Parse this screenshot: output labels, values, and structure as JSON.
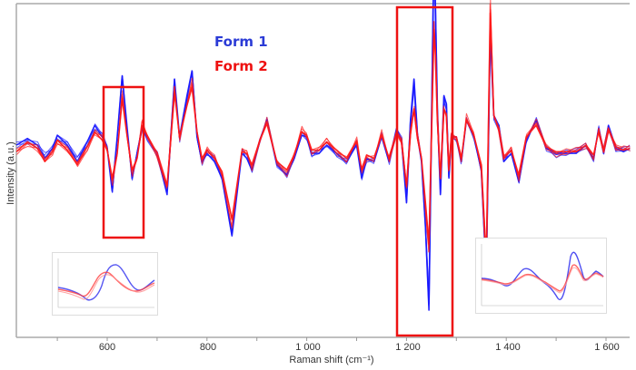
{
  "chart_data": {
    "type": "line",
    "title": "",
    "xlabel": "Raman shift (cm⁻¹)",
    "ylabel": "Intensity (a.u.)",
    "xlim": [
      418,
      1648
    ],
    "xticks": [
      600,
      800,
      1000,
      1200,
      1400,
      1600
    ],
    "xtick_labels": [
      "600",
      "800",
      "1 000",
      "1 200",
      "1 400",
      "1 600"
    ],
    "minor_xticks": [
      500,
      700,
      900,
      1100,
      1300,
      1500
    ],
    "grid": false,
    "legend": [
      {
        "label": "Form 1",
        "color": "#2b3bd6"
      },
      {
        "label": "Form 2",
        "color": "#ee1111"
      }
    ],
    "series": [
      {
        "name": "Form 1",
        "color": "#1a1aff",
        "x": [
          418,
          440,
          460,
          475,
          490,
          500,
          520,
          540,
          560,
          575,
          590,
          600,
          610,
          620,
          630,
          640,
          650,
          660,
          670,
          680,
          700,
          720,
          735,
          745,
          760,
          770,
          780,
          790,
          800,
          815,
          830,
          850,
          870,
          880,
          890,
          905,
          920,
          940,
          960,
          975,
          990,
          1000,
          1010,
          1025,
          1040,
          1060,
          1080,
          1100,
          1110,
          1120,
          1135,
          1150,
          1165,
          1180,
          1190,
          1200,
          1208,
          1215,
          1222,
          1230,
          1238,
          1245,
          1250,
          1255,
          1258,
          1262,
          1268,
          1275,
          1280,
          1285,
          1290,
          1300,
          1310,
          1320,
          1335,
          1350,
          1360,
          1368,
          1375,
          1385,
          1395,
          1410,
          1425,
          1440,
          1460,
          1480,
          1500,
          1520,
          1540,
          1560,
          1575,
          1585,
          1595,
          1605,
          1620,
          1635,
          1648
        ],
        "y": [
          0.0,
          0.04,
          0.0,
          -0.08,
          -0.02,
          0.06,
          0.0,
          -0.1,
          0.02,
          0.12,
          0.05,
          -0.02,
          -0.28,
          0.05,
          0.42,
          0.1,
          -0.2,
          -0.05,
          0.1,
          0.05,
          -0.05,
          -0.3,
          0.4,
          0.05,
          0.3,
          0.45,
          0.05,
          -0.1,
          -0.05,
          -0.1,
          -0.2,
          -0.55,
          -0.05,
          -0.08,
          -0.15,
          0.02,
          0.15,
          -0.12,
          -0.18,
          -0.08,
          0.06,
          0.05,
          -0.05,
          -0.05,
          0.0,
          -0.05,
          -0.1,
          0.0,
          -0.2,
          -0.08,
          -0.1,
          0.05,
          -0.1,
          0.1,
          0.03,
          -0.35,
          0.15,
          0.4,
          0.05,
          -0.1,
          -0.5,
          -1.0,
          0.1,
          1.2,
          0.85,
          0.2,
          -0.3,
          0.3,
          0.25,
          -0.2,
          0.05,
          0.05,
          -0.1,
          0.15,
          0.05,
          -0.15,
          -0.8,
          0.7,
          0.18,
          0.12,
          -0.1,
          -0.05,
          -0.22,
          0.03,
          0.15,
          -0.02,
          -0.05,
          -0.05,
          -0.05,
          0.0,
          -0.08,
          0.1,
          -0.05,
          0.12,
          -0.02,
          -0.04,
          -0.02
        ]
      },
      {
        "name": "Form 2",
        "color": "#ff1a1a",
        "x": [
          418,
          440,
          460,
          475,
          490,
          500,
          520,
          540,
          560,
          575,
          590,
          600,
          610,
          620,
          630,
          640,
          650,
          660,
          670,
          680,
          700,
          720,
          735,
          745,
          760,
          770,
          780,
          790,
          800,
          815,
          830,
          850,
          870,
          880,
          890,
          905,
          920,
          940,
          960,
          975,
          990,
          1000,
          1010,
          1025,
          1040,
          1060,
          1080,
          1100,
          1110,
          1120,
          1135,
          1150,
          1165,
          1180,
          1190,
          1200,
          1208,
          1215,
          1222,
          1230,
          1238,
          1245,
          1250,
          1255,
          1258,
          1262,
          1268,
          1275,
          1280,
          1285,
          1290,
          1300,
          1310,
          1320,
          1335,
          1350,
          1360,
          1368,
          1375,
          1385,
          1395,
          1410,
          1425,
          1440,
          1460,
          1480,
          1500,
          1520,
          1540,
          1560,
          1575,
          1585,
          1595,
          1605,
          1620,
          1635,
          1648
        ],
        "y": [
          -0.04,
          0.02,
          -0.02,
          -0.1,
          -0.04,
          0.03,
          -0.03,
          -0.12,
          -0.01,
          0.08,
          0.03,
          -0.03,
          -0.2,
          -0.05,
          0.28,
          0.05,
          -0.15,
          -0.08,
          0.12,
          0.06,
          -0.05,
          -0.25,
          0.32,
          0.05,
          0.24,
          0.35,
          0.08,
          -0.08,
          -0.03,
          -0.08,
          -0.16,
          -0.45,
          -0.04,
          -0.05,
          -0.12,
          0.02,
          0.13,
          -0.1,
          -0.15,
          -0.06,
          0.08,
          0.06,
          -0.03,
          -0.03,
          0.02,
          -0.03,
          -0.08,
          0.02,
          -0.15,
          -0.06,
          -0.08,
          0.06,
          -0.08,
          0.08,
          0.02,
          -0.25,
          0.08,
          0.22,
          0.04,
          -0.08,
          -0.35,
          -0.6,
          0.05,
          0.7,
          0.55,
          0.15,
          -0.2,
          0.22,
          0.18,
          -0.15,
          0.05,
          0.05,
          -0.08,
          0.15,
          0.06,
          -0.12,
          -0.7,
          0.8,
          0.18,
          0.1,
          -0.08,
          -0.03,
          -0.18,
          0.05,
          0.12,
          -0.01,
          -0.04,
          -0.04,
          -0.04,
          0.0,
          -0.06,
          0.08,
          -0.04,
          0.1,
          -0.01,
          -0.03,
          -0.02
        ]
      }
    ],
    "highlight_boxes": [
      {
        "label": "region-600-680",
        "x_from": 595,
        "x_to": 675
      },
      {
        "label": "region-1170-1290",
        "x_from": 1170,
        "x_to": 1290
      }
    ],
    "insets": [
      {
        "name": "inset-left-zoom",
        "description": "zoom of 600-680 region, Form 1 blue vs Form 2 red"
      },
      {
        "name": "inset-right-zoom",
        "description": "zoom of 1180-1300 region, Form 1 blue vs Form 2 red"
      }
    ]
  },
  "legend": {
    "form1": "Form 1",
    "form2": "Form 2"
  },
  "axes": {
    "xlabel": "Raman shift (cm⁻¹)",
    "ylabel": "Intensity (a.u.)",
    "ticks": [
      "600",
      "800",
      "1 000",
      "1 200",
      "1 400",
      "1 600"
    ]
  }
}
